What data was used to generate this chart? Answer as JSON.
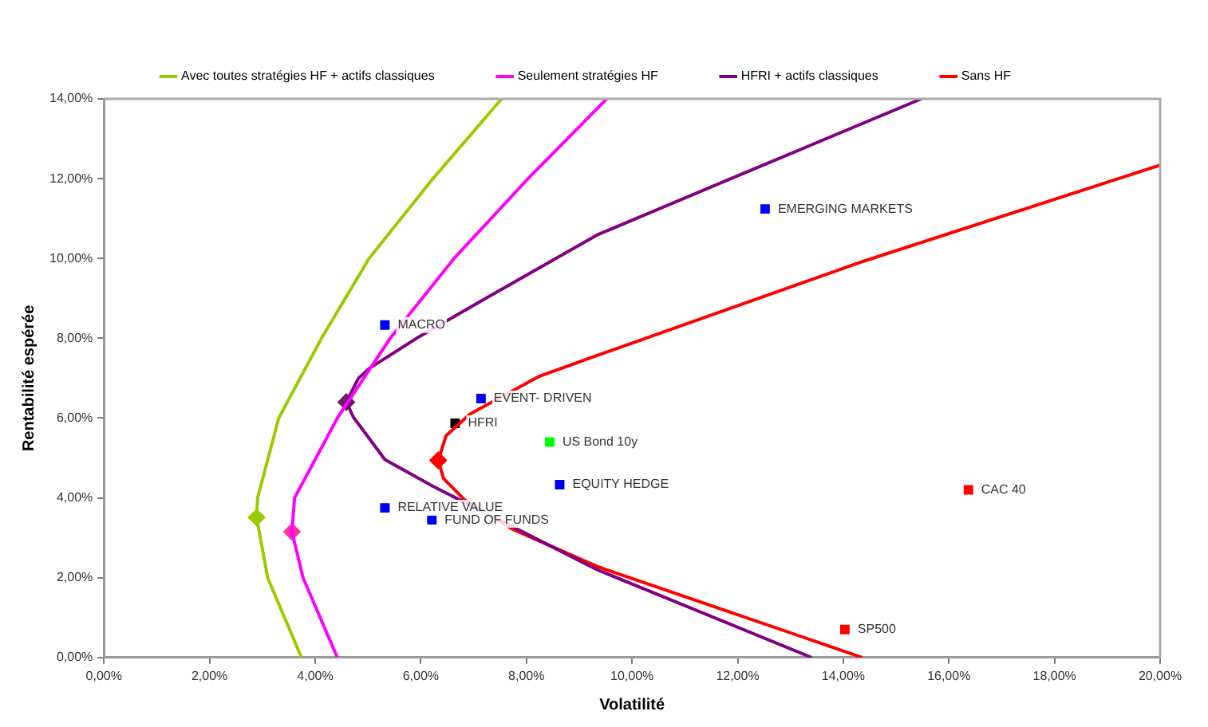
{
  "chart_data": {
    "type": "scatter",
    "xlabel": "Volatilité",
    "ylabel": "Rentabilité espérée",
    "legend": "top",
    "grid": false,
    "xlim": [
      0,
      20
    ],
    "ylim": [
      0,
      14
    ],
    "xticks": [
      {
        "value": 0,
        "label": "0,00%"
      },
      {
        "value": 2,
        "label": "2,00%"
      },
      {
        "value": 4,
        "label": "4,00%"
      },
      {
        "value": 6,
        "label": "6,00%"
      },
      {
        "value": 8,
        "label": "8,00%"
      },
      {
        "value": 10,
        "label": "10,00%"
      },
      {
        "value": 12,
        "label": "12,00%"
      },
      {
        "value": 14,
        "label": "14,00%"
      },
      {
        "value": 16,
        "label": "16,00%"
      },
      {
        "value": 18,
        "label": "18,00%"
      },
      {
        "value": 20,
        "label": "20,00%"
      }
    ],
    "yticks": [
      {
        "value": 0,
        "label": "0,00%"
      },
      {
        "value": 2,
        "label": "2,00%"
      },
      {
        "value": 4,
        "label": "4,00%"
      },
      {
        "value": 6,
        "label": "6,00%"
      },
      {
        "value": 8,
        "label": "8,00%"
      },
      {
        "value": 10,
        "label": "10,00%"
      },
      {
        "value": 12,
        "label": "12,00%"
      },
      {
        "value": 14,
        "label": "14,00%"
      }
    ],
    "series": [
      {
        "name": "Avec toutes stratégies HF + actifs classiques",
        "type": "line",
        "color": "#99cc00",
        "marker": "none",
        "x": [
          3.74,
          3.1,
          2.89,
          2.91,
          3.31,
          4.12,
          5.02,
          6.23,
          7.53
        ],
        "values": [
          0,
          2,
          3.51,
          4,
          6,
          8,
          10,
          12,
          14
        ]
      },
      {
        "name": "Seulement stratégies HF",
        "type": "line",
        "color": "#ff00ff",
        "marker": "none",
        "x": [
          4.42,
          3.77,
          3.56,
          3.61,
          4.42,
          5.42,
          6.63,
          8.03,
          9.52
        ],
        "values": [
          0,
          2,
          3.15,
          4,
          6,
          8,
          10,
          12,
          14
        ]
      },
      {
        "name": "HFRI + actifs classiques",
        "type": "line",
        "color": "#800080",
        "marker": "none",
        "x": [
          13.4,
          9.34,
          7.23,
          6.23,
          5.32,
          4.72,
          4.59,
          4.82,
          5.02,
          5.92,
          7.23,
          9.34,
          11.87,
          15.48
        ],
        "values": [
          0,
          2.2,
          3.62,
          4.29,
          4.96,
          6.03,
          6.4,
          7,
          7.24,
          8,
          9,
          10.59,
          12,
          14
        ]
      },
      {
        "name": "Sans HF",
        "type": "line",
        "color": "#ff0000",
        "marker": "none",
        "x": [
          14.36,
          9.34,
          7.73,
          6.83,
          6.43,
          6.33,
          6.48,
          6.93,
          8.23,
          9.34,
          14.36,
          20
        ],
        "values": [
          0,
          2.28,
          3.22,
          3.95,
          4.49,
          4.94,
          5.56,
          6.1,
          7.04,
          7.57,
          9.92,
          12.34
        ]
      },
      {
        "type": "scatter",
        "marker": "diamond",
        "colors": [
          "#99cc00",
          "#ff3399",
          "#6b1f6b",
          "#ff0000"
        ],
        "x": [
          2.89,
          3.56,
          4.59,
          6.33
        ],
        "values": [
          3.51,
          3.15,
          6.4,
          4.94
        ]
      },
      {
        "type": "scatter",
        "marker": "square",
        "colors": [
          "#0000ff",
          "#0000ff",
          "#0000ff",
          "#0000ff",
          "#0000ff",
          "#0000ff",
          "#000000",
          "#00ff00",
          "#ff0000",
          "#ff0000"
        ],
        "x": [
          5.32,
          7.14,
          8.63,
          5.32,
          6.21,
          12.52,
          6.65,
          8.44,
          16.37,
          14.03
        ],
        "values": [
          8.33,
          6.49,
          4.33,
          3.75,
          3.45,
          11.24,
          5.87,
          5.4,
          4.2,
          0.7
        ]
      }
    ],
    "annotations": [
      {
        "text": "MACRO",
        "x": 5.32,
        "y": 8.33
      },
      {
        "text": "EVENT- DRIVEN",
        "x": 7.14,
        "y": 6.49
      },
      {
        "text": "EQUITY HEDGE",
        "x": 8.63,
        "y": 4.33
      },
      {
        "text": "RELATIVE VALUE",
        "x": 5.32,
        "y": 3.75
      },
      {
        "text": "FUND OF FUNDS",
        "x": 6.21,
        "y": 3.45
      },
      {
        "text": "EMERGING MARKETS",
        "x": 12.52,
        "y": 11.24
      },
      {
        "text": "HFRI",
        "x": 6.65,
        "y": 5.87
      },
      {
        "text": "US Bond 10y",
        "x": 8.44,
        "y": 5.4
      },
      {
        "text": "CAC 40",
        "x": 16.37,
        "y": 4.2
      },
      {
        "text": "SP500",
        "x": 14.03,
        "y": 0.7
      }
    ]
  }
}
